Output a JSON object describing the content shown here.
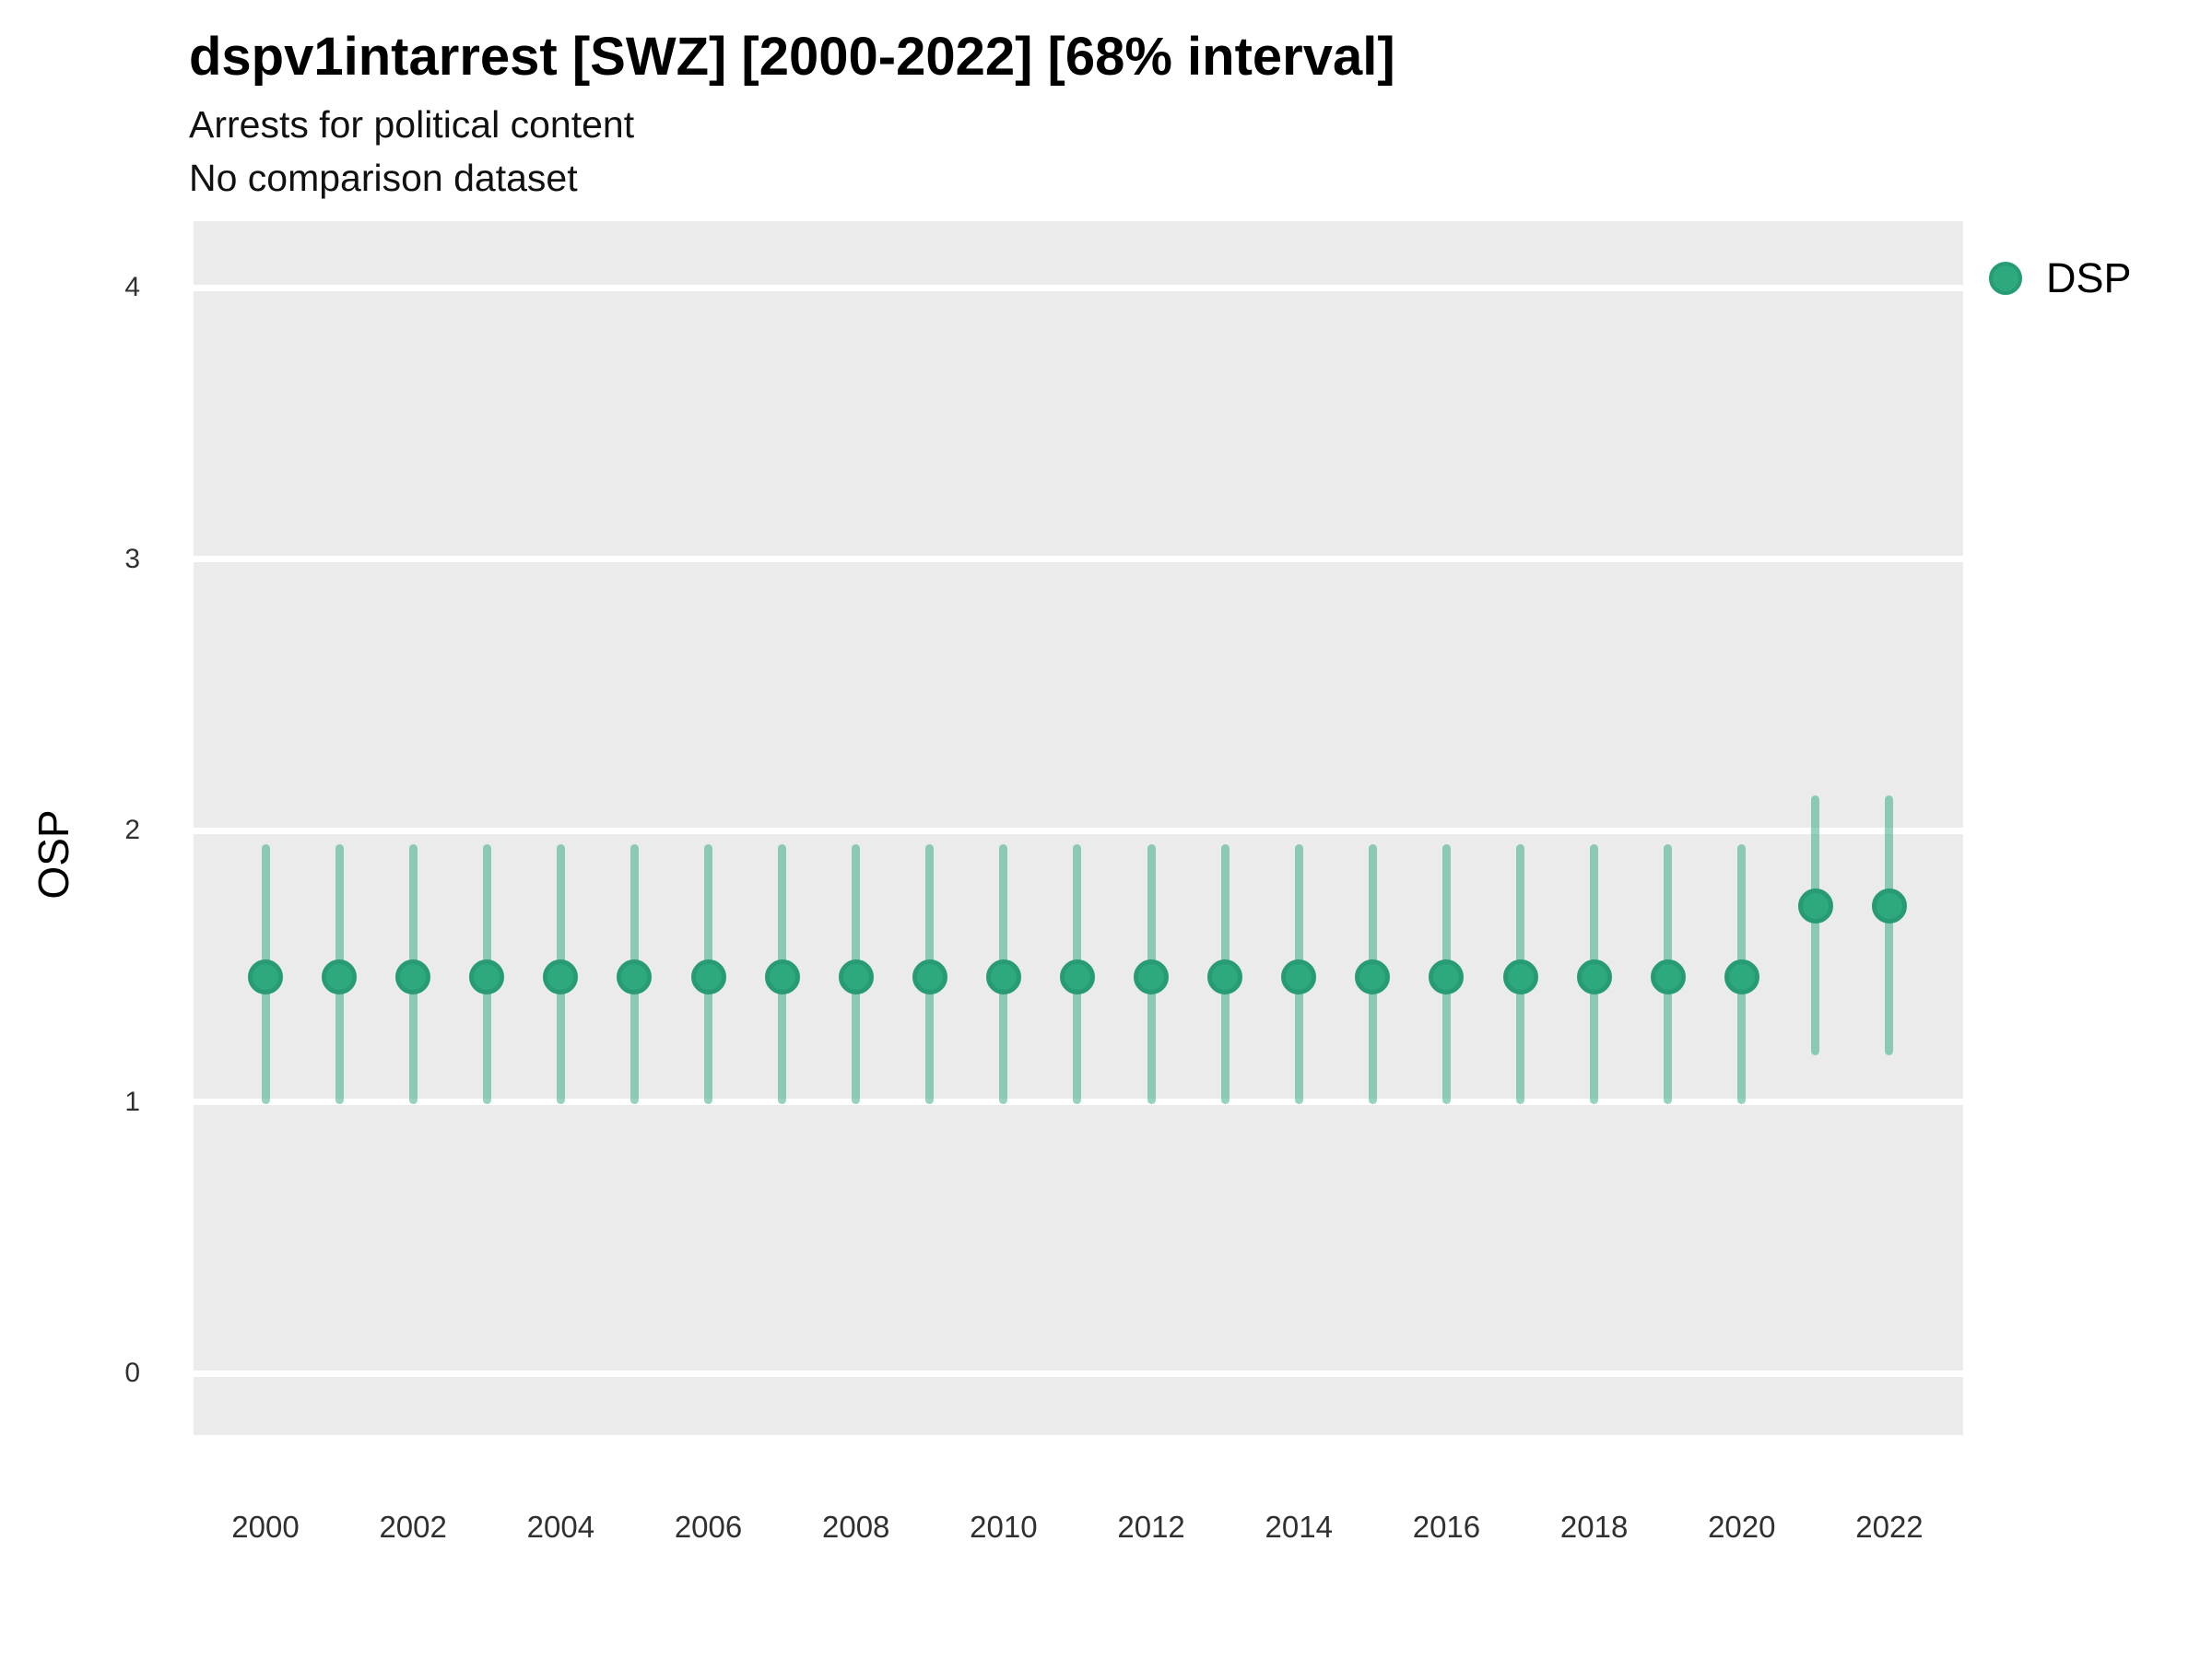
{
  "title": "dspv1intarrest [SWZ] [2000-2022] [68% interval]",
  "subtitle": "Arrests for political content",
  "comparison_note": "No comparison dataset",
  "legend": {
    "label": "DSP"
  },
  "colors": {
    "point_fill": "#2EA87D",
    "point_stroke": "#279C74",
    "interval": "rgba(46,168,125,0.5)",
    "panel_bg": "#EBEBEB",
    "gridline": "#FFFFFF",
    "title_text": "#000000",
    "tick_text": "#303030"
  },
  "chart_data": {
    "type": "scatter",
    "title": "dspv1intarrest [SWZ] [2000-2022] [68% interval]",
    "subtitle": "Arrests for political content",
    "note": "No comparison dataset",
    "interval_level": "68%",
    "xlabel": "",
    "ylabel": "OSP",
    "xlim": [
      1999,
      2023
    ],
    "ylim": [
      0,
      4
    ],
    "grid": "major-horizontal-white-on-gray",
    "legend_position": "right",
    "x_ticks": [
      2000,
      2002,
      2004,
      2006,
      2008,
      2010,
      2012,
      2014,
      2016,
      2018,
      2020,
      2022
    ],
    "y_ticks": [
      0,
      1,
      2,
      3,
      4
    ],
    "series": [
      {
        "name": "DSP",
        "points": [
          {
            "year": 2000,
            "est": 1.46,
            "lo": 0.99,
            "hi": 1.95
          },
          {
            "year": 2001,
            "est": 1.46,
            "lo": 0.99,
            "hi": 1.95
          },
          {
            "year": 2002,
            "est": 1.46,
            "lo": 0.99,
            "hi": 1.95
          },
          {
            "year": 2003,
            "est": 1.46,
            "lo": 0.99,
            "hi": 1.95
          },
          {
            "year": 2004,
            "est": 1.46,
            "lo": 0.99,
            "hi": 1.95
          },
          {
            "year": 2005,
            "est": 1.46,
            "lo": 0.99,
            "hi": 1.95
          },
          {
            "year": 2006,
            "est": 1.46,
            "lo": 0.99,
            "hi": 1.95
          },
          {
            "year": 2007,
            "est": 1.46,
            "lo": 0.99,
            "hi": 1.95
          },
          {
            "year": 2008,
            "est": 1.46,
            "lo": 0.99,
            "hi": 1.95
          },
          {
            "year": 2009,
            "est": 1.46,
            "lo": 0.99,
            "hi": 1.95
          },
          {
            "year": 2010,
            "est": 1.46,
            "lo": 0.99,
            "hi": 1.95
          },
          {
            "year": 2011,
            "est": 1.46,
            "lo": 0.99,
            "hi": 1.95
          },
          {
            "year": 2012,
            "est": 1.46,
            "lo": 0.99,
            "hi": 1.95
          },
          {
            "year": 2013,
            "est": 1.46,
            "lo": 0.99,
            "hi": 1.95
          },
          {
            "year": 2014,
            "est": 1.46,
            "lo": 0.99,
            "hi": 1.95
          },
          {
            "year": 2015,
            "est": 1.46,
            "lo": 0.99,
            "hi": 1.95
          },
          {
            "year": 2016,
            "est": 1.46,
            "lo": 0.99,
            "hi": 1.95
          },
          {
            "year": 2017,
            "est": 1.46,
            "lo": 0.99,
            "hi": 1.95
          },
          {
            "year": 2018,
            "est": 1.46,
            "lo": 0.99,
            "hi": 1.95
          },
          {
            "year": 2019,
            "est": 1.46,
            "lo": 0.99,
            "hi": 1.95
          },
          {
            "year": 2020,
            "est": 1.46,
            "lo": 0.99,
            "hi": 1.95
          },
          {
            "year": 2021,
            "est": 1.72,
            "lo": 1.17,
            "hi": 2.13
          },
          {
            "year": 2022,
            "est": 1.72,
            "lo": 1.17,
            "hi": 2.13
          }
        ]
      }
    ]
  }
}
